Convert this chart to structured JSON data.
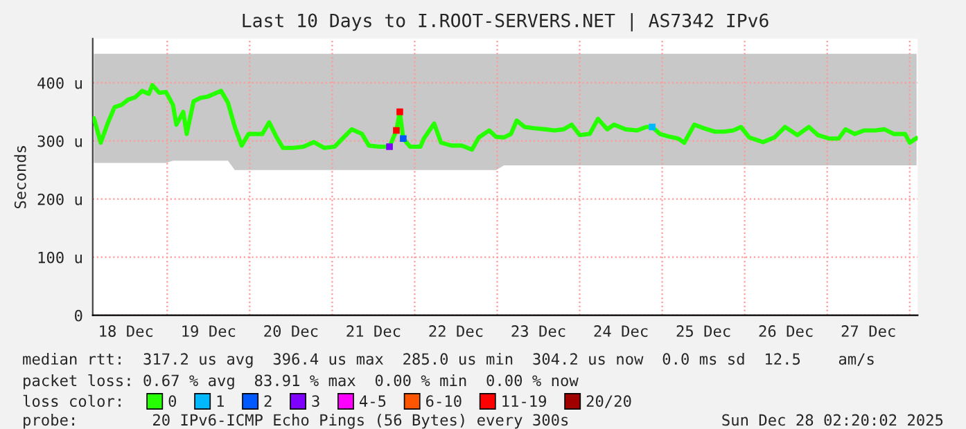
{
  "chart_data": {
    "type": "line",
    "title": "Last 10 Days to I.ROOT-SERVERS.NET | AS7342 IPv6",
    "ylabel": "Seconds",
    "legend_title": "loss color:",
    "xlim": [
      "2025-12-18T02:20",
      "2025-12-28T02:20"
    ],
    "ylim": [
      0,
      476
    ],
    "xticks": [
      {
        "value": "2025-12-18T12:00",
        "label": "18 Dec"
      },
      {
        "value": "2025-12-19T00:00",
        "label": null
      },
      {
        "value": "2025-12-19T12:00",
        "label": "19 Dec"
      },
      {
        "value": "2025-12-20T00:00",
        "label": null
      },
      {
        "value": "2025-12-20T12:00",
        "label": "20 Dec"
      },
      {
        "value": "2025-12-21T00:00",
        "label": null
      },
      {
        "value": "2025-12-21T12:00",
        "label": "21 Dec"
      },
      {
        "value": "2025-12-22T00:00",
        "label": null
      },
      {
        "value": "2025-12-22T12:00",
        "label": "22 Dec"
      },
      {
        "value": "2025-12-23T00:00",
        "label": null
      },
      {
        "value": "2025-12-23T12:00",
        "label": "23 Dec"
      },
      {
        "value": "2025-12-24T00:00",
        "label": null
      },
      {
        "value": "2025-12-24T12:00",
        "label": "24 Dec"
      },
      {
        "value": "2025-12-25T00:00",
        "label": null
      },
      {
        "value": "2025-12-25T12:00",
        "label": "25 Dec"
      },
      {
        "value": "2025-12-26T00:00",
        "label": null
      },
      {
        "value": "2025-12-26T12:00",
        "label": "26 Dec"
      },
      {
        "value": "2025-12-27T00:00",
        "label": null
      },
      {
        "value": "2025-12-27T12:00",
        "label": "27 Dec"
      },
      {
        "value": "2025-12-28T00:00",
        "label": null
      }
    ],
    "yticks": [
      0,
      {
        "value": 100,
        "label": "100 u"
      },
      {
        "value": 200,
        "label": "200 u"
      },
      {
        "value": 300,
        "label": "300 u"
      },
      {
        "value": 400,
        "label": "400 u"
      }
    ],
    "grid": true,
    "legend": "bottom",
    "series": [
      {
        "name": "0",
        "color": "#26ff00",
        "x": [
          "2025-12-18T02:40",
          "2025-12-18T04:40",
          "2025-12-18T06:40",
          "2025-12-18T08:40",
          "2025-12-18T10:40",
          "2025-12-18T12:40",
          "2025-12-18T14:40",
          "2025-12-18T16:40",
          "2025-12-18T18:40",
          "2025-12-18T19:40",
          "2025-12-18T21:40",
          "2025-12-18T23:40",
          "2025-12-19T01:40",
          "2025-12-19T02:40",
          "2025-12-19T04:40",
          "2025-12-19T05:40",
          "2025-12-19T07:40",
          "2025-12-19T09:40",
          "2025-12-19T11:40",
          "2025-12-19T13:40",
          "2025-12-19T15:40",
          "2025-12-19T17:40",
          "2025-12-19T19:40",
          "2025-12-19T21:40",
          "2025-12-19T23:40",
          "2025-12-20T01:40",
          "2025-12-20T03:40",
          "2025-12-20T05:40",
          "2025-12-20T07:40",
          "2025-12-20T09:40",
          "2025-12-20T12:40",
          "2025-12-20T15:40",
          "2025-12-20T18:40",
          "2025-12-20T21:40",
          "2025-12-21T00:40",
          "2025-12-21T02:40",
          "2025-12-21T05:40",
          "2025-12-21T08:40",
          "2025-12-21T10:40",
          "2025-12-21T13:40",
          "2025-12-21T16:40",
          "2025-12-21T18:40",
          "2025-12-21T19:40",
          "2025-12-21T20:40",
          "2025-12-21T22:40",
          "2025-12-22T01:40",
          "2025-12-22T02:40",
          "2025-12-22T05:40",
          "2025-12-22T07:40",
          "2025-12-22T10:40",
          "2025-12-22T13:40",
          "2025-12-22T16:40",
          "2025-12-22T18:40",
          "2025-12-22T21:40",
          "2025-12-22T23:40",
          "2025-12-23T02:00",
          "2025-12-23T04:00",
          "2025-12-23T05:40",
          "2025-12-23T08:00",
          "2025-12-23T10:40",
          "2025-12-23T14:00",
          "2025-12-23T16:40",
          "2025-12-23T19:20",
          "2025-12-23T21:40",
          "2025-12-24T00:00",
          "2025-12-24T02:55",
          "2025-12-24T05:20",
          "2025-12-24T08:00",
          "2025-12-24T10:00",
          "2025-12-24T13:20",
          "2025-12-24T16:40",
          "2025-12-24T19:20",
          "2025-12-24T21:05",
          "2025-12-24T23:20",
          "2025-12-25T01:40",
          "2025-12-25T04:40",
          "2025-12-25T06:25",
          "2025-12-25T09:20",
          "2025-12-25T12:00",
          "2025-12-25T15:20",
          "2025-12-25T18:00",
          "2025-12-25T20:40",
          "2025-12-25T22:55",
          "2025-12-26T01:20",
          "2025-12-26T05:20",
          "2025-12-26T08:40",
          "2025-12-26T11:45",
          "2025-12-26T15:20",
          "2025-12-26T18:40",
          "2025-12-26T21:20",
          "2025-12-27T00:40",
          "2025-12-27T03:20",
          "2025-12-27T05:20",
          "2025-12-27T08:00",
          "2025-12-27T10:40",
          "2025-12-27T14:00",
          "2025-12-27T16:40",
          "2025-12-27T19:20",
          "2025-12-27T22:40",
          "2025-12-28T00:00",
          "2025-12-28T02:00"
        ],
        "values": [
          339,
          297,
          330,
          358,
          362,
          371,
          375,
          386,
          381,
          396,
          383,
          384,
          362,
          328,
          350,
          312,
          368,
          374,
          376,
          381,
          386,
          366,
          324,
          292,
          312,
          312,
          312,
          332,
          308,
          288,
          288,
          290,
          298,
          288,
          290,
          302,
          320,
          312,
          292,
          290,
          290,
          318,
          350,
          304,
          290,
          290,
          304,
          330,
          297,
          292,
          292,
          285,
          306,
          318,
          307,
          306,
          312,
          335,
          324,
          322,
          320,
          318,
          320,
          328,
          310,
          312,
          338,
          320,
          328,
          320,
          318,
          324,
          324,
          312,
          308,
          304,
          297,
          328,
          322,
          316,
          316,
          318,
          324,
          306,
          298,
          306,
          324,
          310,
          324,
          310,
          304,
          304,
          320,
          312,
          318,
          318,
          320,
          312,
          312,
          297,
          305
        ],
        "lower": [
          262,
          262,
          262,
          262,
          262,
          262,
          262,
          262,
          262,
          262,
          262,
          262,
          266,
          266,
          266,
          266,
          266,
          266,
          266,
          266,
          266,
          266,
          250,
          250,
          250,
          250,
          250,
          250,
          250,
          250,
          250,
          250,
          250,
          250,
          250,
          250,
          250,
          250,
          250,
          250,
          250,
          250,
          250,
          250,
          250,
          250,
          250,
          250,
          250,
          250,
          250,
          250,
          250,
          250,
          250,
          258,
          258,
          258,
          258,
          258,
          258,
          258,
          258,
          258,
          258,
          258,
          258,
          258,
          258,
          258,
          258,
          258,
          258,
          258,
          258,
          258,
          258,
          258,
          258,
          258,
          258,
          258,
          258,
          258,
          258,
          258,
          258,
          258,
          258,
          258,
          258,
          258,
          258,
          258,
          258,
          258,
          258,
          258,
          258,
          258,
          258
        ],
        "upper": [
          450,
          450,
          450,
          450,
          450,
          450,
          450,
          450,
          450,
          450,
          450,
          450,
          450,
          450,
          450,
          450,
          450,
          450,
          450,
          450,
          450,
          450,
          450,
          450,
          450,
          450,
          450,
          450,
          450,
          450,
          450,
          450,
          450,
          450,
          450,
          450,
          450,
          450,
          450,
          450,
          450,
          450,
          450,
          450,
          450,
          450,
          450,
          450,
          450,
          450,
          450,
          450,
          450,
          450,
          450,
          450,
          450,
          450,
          450,
          450,
          450,
          450,
          450,
          450,
          450,
          450,
          450,
          450,
          450,
          450,
          450,
          450,
          450,
          450,
          450,
          450,
          450,
          450,
          450,
          450,
          450,
          450,
          450,
          450,
          450,
          450,
          450,
          450,
          450,
          450,
          450,
          450,
          450,
          450,
          450,
          450,
          450,
          450,
          450,
          450,
          450
        ]
      },
      {
        "name": "1",
        "color": "#00b8ff",
        "type": "scatter",
        "marker": "square",
        "x": [
          "2025-12-24T21:05"
        ],
        "values": [
          324
        ]
      },
      {
        "name": "2",
        "color": "#0059ff",
        "type": "scatter",
        "marker": "square",
        "x": [
          "2025-12-21T20:40"
        ],
        "values": [
          304
        ]
      },
      {
        "name": "3",
        "color": "#7e00ff",
        "type": "scatter",
        "marker": "square",
        "x": [
          "2025-12-21T16:40"
        ],
        "values": [
          290
        ]
      },
      {
        "name": "4-5",
        "color": "#ff00ff",
        "type": "scatter",
        "marker": "square"
      },
      {
        "name": "6-10",
        "color": "#ff5500",
        "type": "scatter",
        "marker": "square"
      },
      {
        "name": "11-19",
        "color": "#ff0000",
        "type": "scatter",
        "marker": "square",
        "x": [
          "2025-12-21T18:40",
          "2025-12-21T19:40"
        ],
        "values": [
          318,
          350
        ]
      },
      {
        "name": "20/20",
        "color": "#a10000",
        "type": "scatter",
        "marker": "square"
      }
    ],
    "annotations": [
      "median rtt:  317.2 us avg  396.4 us max  285.0 us min  304.2 us now  0.0 ms sd  12.5    am/s",
      "packet loss: 0.67 % avg  83.91 % max  0.00 % min  0.00 % now",
      "probe:        20 IPv6-ICMP Echo Pings (56 Bytes) every 300s",
      "Sun Dec 28 02:20:02 2025"
    ]
  }
}
